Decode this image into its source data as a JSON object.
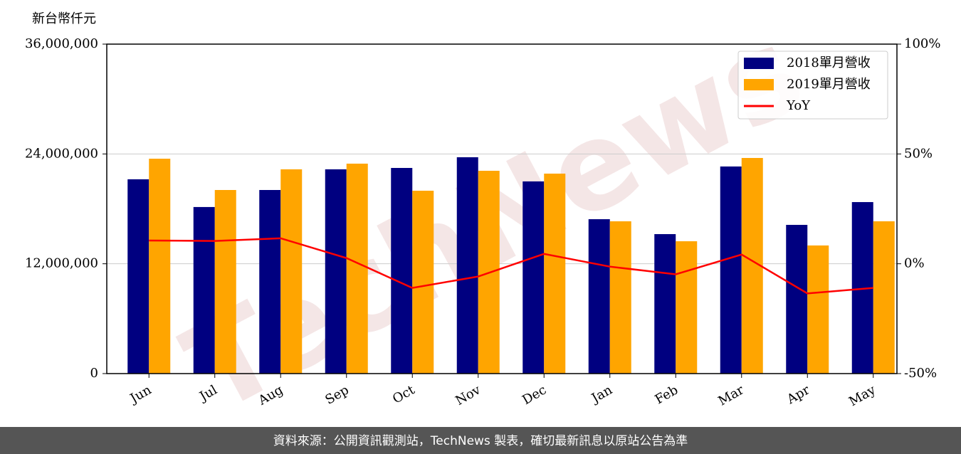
{
  "chart_data": {
    "type": "bar",
    "y_label": "新台幣仟元",
    "watermark": "TechNews",
    "categories": [
      "Jun",
      "Jul",
      "Aug",
      "Sep",
      "Oct",
      "Nov",
      "Dec",
      "Jan",
      "Feb",
      "Mar",
      "Apr",
      "May"
    ],
    "series": [
      {
        "name": "2018單月營收",
        "color": "#000080",
        "type": "bar",
        "values": [
          21230000,
          18200000,
          20060000,
          22320000,
          22470000,
          23640000,
          21000000,
          16870000,
          15240000,
          22630000,
          16250000,
          18740000
        ]
      },
      {
        "name": "2019單月營收",
        "color": "#ffa500",
        "type": "bar",
        "values": [
          23480000,
          20060000,
          22320000,
          22940000,
          19980000,
          22160000,
          21850000,
          16640000,
          14460000,
          23560000,
          14000000,
          16640000
        ]
      },
      {
        "name": "YoY",
        "color": "#ff0000",
        "type": "line",
        "axis": "y2",
        "values": [
          10.6,
          10.4,
          11.6,
          2.6,
          -11,
          -5.8,
          4.5,
          -1.3,
          -4.8,
          4.2,
          -13.5,
          -11
        ]
      }
    ],
    "ylim": [
      0,
      36000000
    ],
    "yticks": [
      0,
      {
        "value": 12000000,
        "label": "12,000,000"
      },
      {
        "value": 24000000,
        "label": "24,000,000"
      },
      {
        "value": 36000000,
        "label": "36,000,000"
      }
    ],
    "y2lim": [
      -50,
      100
    ],
    "y2ticks": [
      {
        "value": -50,
        "label": "-50%"
      },
      {
        "value": 0,
        "label": "0%"
      },
      {
        "value": 50,
        "label": "50%"
      },
      {
        "value": 100,
        "label": "100%"
      }
    ],
    "grid": true,
    "legend": "upper right"
  },
  "footer": "資料來源：公開資訊觀測站，TechNews 製表，確切最新訊息以原站公告為準"
}
